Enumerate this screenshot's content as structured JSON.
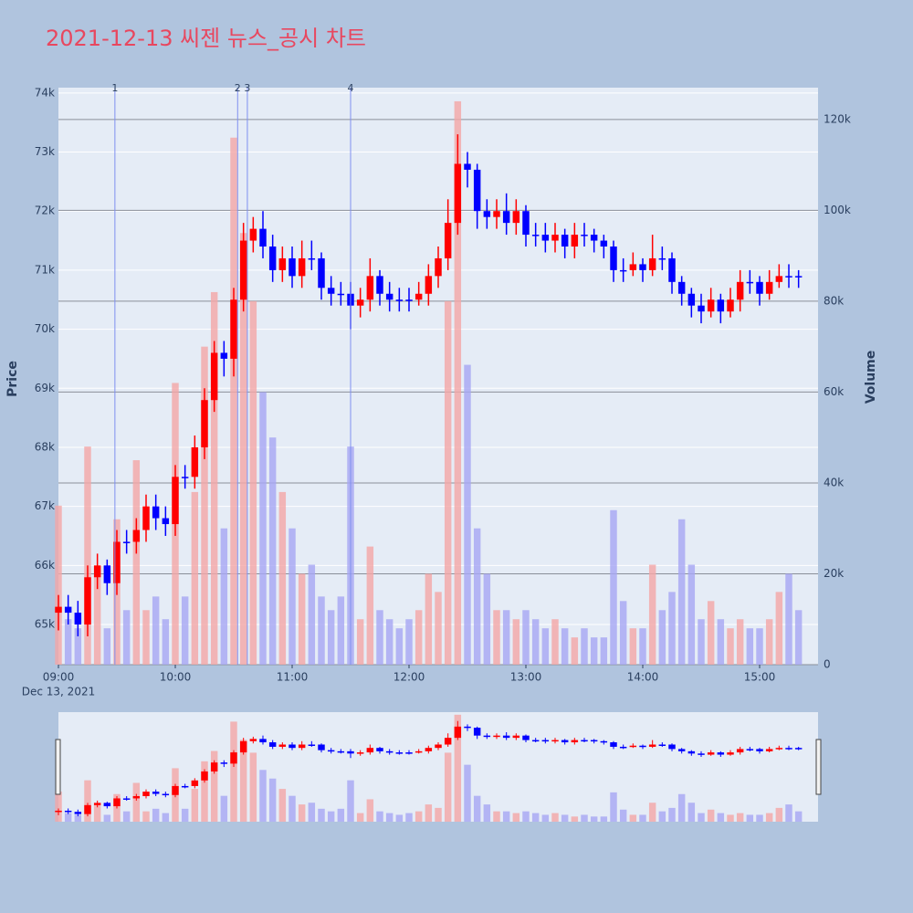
{
  "chart_data": {
    "type": "candlestick",
    "title": "2021-12-13 씨젠 뉴스_공시 차트",
    "y_title": "Price",
    "y2_title": "Volume",
    "x_date_label": "Dec 13, 2021",
    "increasing_color": "#ff0000",
    "decreasing_color": "#0000ff",
    "volume_increasing_color": "#f4a6a6",
    "volume_decreasing_color": "#a6a6f4",
    "news_color": "#7f8ff0",
    "xlim": [
      "2021-12-13 09:00",
      "2021-12-13 15:30"
    ],
    "xticks": [
      {
        "value": "2021-12-13 09:00",
        "label": "09:00"
      },
      {
        "value": "2021-12-13 10:00",
        "label": "10:00"
      },
      {
        "value": "2021-12-13 11:00",
        "label": "11:00"
      },
      {
        "value": "2021-12-13 12:00",
        "label": "12:00"
      },
      {
        "value": "2021-12-13 13:00",
        "label": "13:00"
      },
      {
        "value": "2021-12-13 14:00",
        "label": "14:00"
      },
      {
        "value": "2021-12-13 15:00",
        "label": "15:00"
      }
    ],
    "ylim": [
      64320,
      74090
    ],
    "yticks": [
      {
        "value": 65000,
        "label": "65k"
      },
      {
        "value": 66000,
        "label": "66k"
      },
      {
        "value": 67000,
        "label": "67k"
      },
      {
        "value": 68000,
        "label": "68k"
      },
      {
        "value": 69000,
        "label": "69k"
      },
      {
        "value": 70000,
        "label": "70k"
      },
      {
        "value": 71000,
        "label": "71k"
      },
      {
        "value": 72000,
        "label": "72k"
      },
      {
        "value": 73000,
        "label": "73k"
      },
      {
        "value": 74000,
        "label": "74k"
      }
    ],
    "y2lim": [
      0,
      127000
    ],
    "y2ticks": [
      0,
      {
        "value": 20000,
        "label": "20k"
      },
      {
        "value": 40000,
        "label": "40k"
      },
      {
        "value": 60000,
        "label": "60k"
      },
      {
        "value": 80000,
        "label": "80k"
      },
      {
        "value": 100000,
        "label": "100k"
      },
      {
        "value": 120000,
        "label": "120k"
      }
    ],
    "news": [
      {
        "label": "1",
        "x": "2021-12-13 09:29"
      },
      {
        "label": "2",
        "x": "2021-12-13 10:32"
      },
      {
        "label": "3",
        "x": "2021-12-13 10:37"
      },
      {
        "label": "4",
        "x": "2021-12-13 11:30"
      }
    ],
    "x": [
      "2021-12-13 09:00",
      "2021-12-13 09:05",
      "2021-12-13 09:10",
      "2021-12-13 09:15",
      "2021-12-13 09:20",
      "2021-12-13 09:25",
      "2021-12-13 09:30",
      "2021-12-13 09:35",
      "2021-12-13 09:40",
      "2021-12-13 09:45",
      "2021-12-13 09:50",
      "2021-12-13 09:55",
      "2021-12-13 10:00",
      "2021-12-13 10:05",
      "2021-12-13 10:10",
      "2021-12-13 10:15",
      "2021-12-13 10:20",
      "2021-12-13 10:25",
      "2021-12-13 10:30",
      "2021-12-13 10:35",
      "2021-12-13 10:40",
      "2021-12-13 10:45",
      "2021-12-13 10:50",
      "2021-12-13 10:55",
      "2021-12-13 11:00",
      "2021-12-13 11:05",
      "2021-12-13 11:10",
      "2021-12-13 11:15",
      "2021-12-13 11:20",
      "2021-12-13 11:25",
      "2021-12-13 11:30",
      "2021-12-13 11:35",
      "2021-12-13 11:40",
      "2021-12-13 11:45",
      "2021-12-13 11:50",
      "2021-12-13 11:55",
      "2021-12-13 12:00",
      "2021-12-13 12:05",
      "2021-12-13 12:10",
      "2021-12-13 12:15",
      "2021-12-13 12:20",
      "2021-12-13 12:25",
      "2021-12-13 12:30",
      "2021-12-13 12:35",
      "2021-12-13 12:40",
      "2021-12-13 12:45",
      "2021-12-13 12:50",
      "2021-12-13 12:55",
      "2021-12-13 13:00",
      "2021-12-13 13:05",
      "2021-12-13 13:10",
      "2021-12-13 13:15",
      "2021-12-13 13:20",
      "2021-12-13 13:25",
      "2021-12-13 13:30",
      "2021-12-13 13:35",
      "2021-12-13 13:40",
      "2021-12-13 13:45",
      "2021-12-13 13:50",
      "2021-12-13 13:55",
      "2021-12-13 14:00",
      "2021-12-13 14:05",
      "2021-12-13 14:10",
      "2021-12-13 14:15",
      "2021-12-13 14:20",
      "2021-12-13 14:25",
      "2021-12-13 14:30",
      "2021-12-13 14:35",
      "2021-12-13 14:40",
      "2021-12-13 14:45",
      "2021-12-13 14:50",
      "2021-12-13 14:55",
      "2021-12-13 15:00",
      "2021-12-13 15:05",
      "2021-12-13 15:10",
      "2021-12-13 15:15",
      "2021-12-13 15:20"
    ],
    "open": [
      65200,
      65300,
      65200,
      65000,
      65800,
      66000,
      65700,
      66400,
      66400,
      66600,
      67000,
      66800,
      66700,
      67500,
      67500,
      68000,
      68800,
      69600,
      69500,
      70500,
      71500,
      71700,
      71400,
      71000,
      71200,
      70900,
      71200,
      71200,
      70700,
      70600,
      70600,
      70400,
      70500,
      70900,
      70600,
      70500,
      70500,
      70500,
      70600,
      70900,
      71200,
      71800,
      72800,
      72700,
      72000,
      71900,
      72000,
      71800,
      72000,
      71600,
      71600,
      71500,
      71600,
      71400,
      71600,
      71600,
      71500,
      71400,
      71000,
      71000,
      71100,
      71000,
      71200,
      71200,
      70800,
      70600,
      70400,
      70300,
      70500,
      70300,
      70500,
      70800,
      70800,
      70600,
      70800,
      70900,
      70900
    ],
    "high": [
      65500,
      65500,
      65400,
      66000,
      66200,
      66100,
      66600,
      66600,
      66800,
      67200,
      67200,
      67000,
      67700,
      67700,
      68200,
      69000,
      69800,
      69800,
      70700,
      71800,
      71900,
      72000,
      71600,
      71400,
      71400,
      71500,
      71500,
      71300,
      70900,
      70800,
      70800,
      70700,
      71200,
      71000,
      70800,
      70700,
      70700,
      70800,
      71100,
      71400,
      72200,
      73300,
      73000,
      72800,
      72200,
      72200,
      72300,
      72200,
      72100,
      71800,
      71800,
      71800,
      71700,
      71800,
      71800,
      71700,
      71600,
      71500,
      71200,
      71300,
      71200,
      71600,
      71400,
      71300,
      70900,
      70700,
      70600,
      70700,
      70600,
      70700,
      71000,
      71000,
      70900,
      71000,
      71100,
      71100,
      71000
    ],
    "low": [
      64900,
      65000,
      64800,
      64800,
      65600,
      65500,
      65500,
      66200,
      66200,
      66400,
      66600,
      66500,
      66500,
      67300,
      67300,
      67800,
      68600,
      69200,
      69200,
      70300,
      71300,
      71200,
      70800,
      70800,
      70700,
      70700,
      71000,
      70500,
      70400,
      70400,
      70000,
      70200,
      70300,
      70400,
      70300,
      70300,
      70300,
      70400,
      70400,
      70700,
      71000,
      71600,
      72400,
      71700,
      71700,
      71700,
      71600,
      71600,
      71400,
      71400,
      71300,
      71300,
      71200,
      71200,
      71400,
      71300,
      71200,
      70800,
      70800,
      70900,
      70800,
      70900,
      71000,
      70600,
      70400,
      70200,
      70100,
      70200,
      70100,
      70200,
      70300,
      70600,
      70400,
      70500,
      70700,
      70700,
      70700
    ],
    "close": [
      65300,
      65200,
      65000,
      65800,
      66000,
      65700,
      66400,
      66400,
      66600,
      67000,
      66800,
      66700,
      67500,
      67500,
      68000,
      68800,
      69600,
      69500,
      70500,
      71500,
      71700,
      71400,
      71000,
      71200,
      70900,
      71200,
      71200,
      70700,
      70600,
      70600,
      70400,
      70500,
      70900,
      70600,
      70500,
      70500,
      70500,
      70600,
      70900,
      71200,
      71800,
      72800,
      72700,
      72000,
      71900,
      72000,
      71800,
      72000,
      71600,
      71600,
      71500,
      71600,
      71400,
      71600,
      71600,
      71500,
      71400,
      71000,
      71000,
      71100,
      71000,
      71200,
      71200,
      70800,
      70600,
      70400,
      70300,
      70500,
      70300,
      70500,
      70800,
      70800,
      70600,
      70800,
      70900,
      70900,
      70900
    ],
    "volume": [
      35000,
      10000,
      8000,
      48000,
      20000,
      8000,
      32000,
      12000,
      45000,
      12000,
      15000,
      10000,
      62000,
      15000,
      38000,
      70000,
      82000,
      30000,
      116000,
      95000,
      80000,
      60000,
      50000,
      38000,
      30000,
      20000,
      22000,
      15000,
      12000,
      15000,
      48000,
      10000,
      26000,
      12000,
      10000,
      8000,
      10000,
      12000,
      20000,
      16000,
      80000,
      124000,
      66000,
      30000,
      20000,
      12000,
      12000,
      10000,
      12000,
      10000,
      8000,
      10000,
      8000,
      6000,
      8000,
      6000,
      6000,
      34000,
      14000,
      8000,
      8000,
      22000,
      12000,
      16000,
      32000,
      22000,
      10000,
      14000,
      10000,
      8000,
      10000,
      8000,
      8000,
      10000,
      16000,
      20000,
      12000
    ]
  }
}
